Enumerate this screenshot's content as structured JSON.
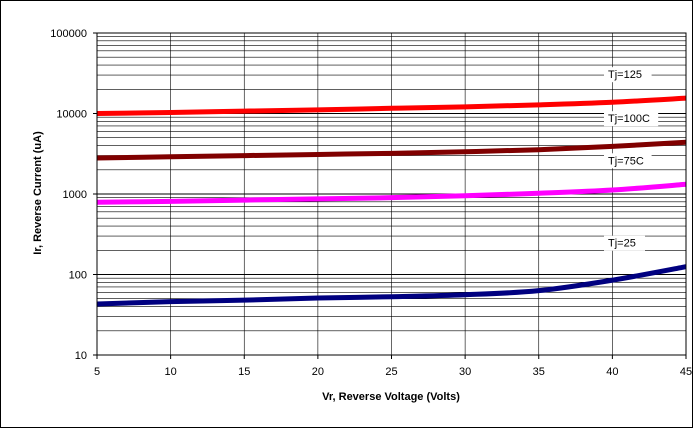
{
  "chart_data": {
    "type": "line",
    "title": "",
    "xlabel": "Vr, Reverse Voltage (Volts)",
    "ylabel": "Ir, Reverse Current (uA)",
    "xlim": [
      5,
      45
    ],
    "ylim": [
      10,
      100000
    ],
    "y_scale": "log",
    "grid": true,
    "legend": "inline labels at right",
    "x_ticks": [
      "5",
      "10",
      "15",
      "20",
      "25",
      "30",
      "35",
      "40",
      "45"
    ],
    "y_ticks": [
      "10",
      "100",
      "1000",
      "10000",
      "100000"
    ],
    "x": [
      5,
      10,
      15,
      20,
      25,
      30,
      35,
      40,
      45
    ],
    "series": [
      {
        "name": "Tj=125",
        "color": "#ff0000",
        "values": [
          10000,
          10300,
          10700,
          11100,
          11600,
          12100,
          12800,
          13800,
          15500
        ]
      },
      {
        "name": "Tj=100C",
        "color": "#800000",
        "values": [
          2800,
          2900,
          3000,
          3100,
          3200,
          3350,
          3550,
          3900,
          4400
        ]
      },
      {
        "name": "Tj=75C",
        "color": "#ff00ff",
        "values": [
          790,
          810,
          840,
          870,
          900,
          950,
          1020,
          1120,
          1320
        ]
      },
      {
        "name": "Tj=25",
        "color": "#000080",
        "values": [
          43,
          46,
          48,
          51,
          53,
          56,
          63,
          85,
          125
        ]
      }
    ]
  }
}
